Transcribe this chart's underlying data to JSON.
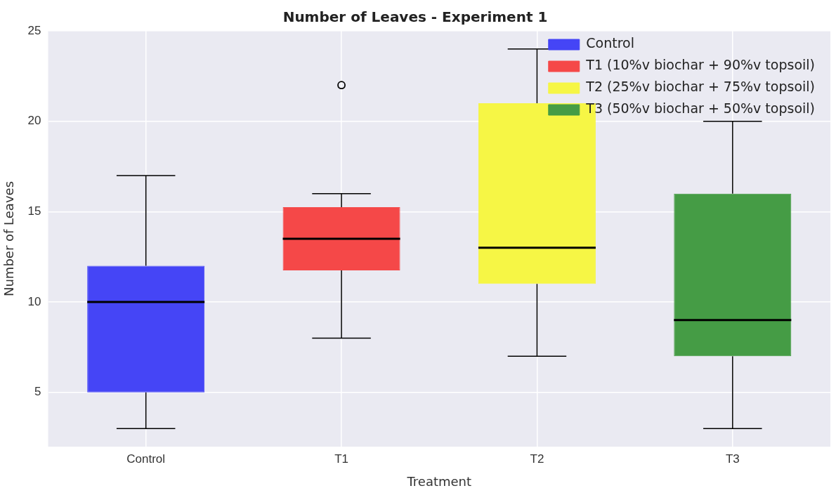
{
  "chart_data": {
    "type": "box",
    "title": "Number of Leaves - Experiment 1",
    "xlabel": "Treatment",
    "ylabel": "Number of Leaves",
    "categories": [
      "Control",
      "T1",
      "T2",
      "T3"
    ],
    "series": [
      {
        "name": "Control",
        "color": "#4545f6",
        "boxes": [
          {
            "low": 3,
            "q1": 5,
            "median": 10,
            "q3": 12,
            "high": 17
          },
          null,
          null,
          null
        ]
      },
      {
        "name": "T1 (10%v biochar + 90%v topsoil)",
        "color": "#f54848",
        "boxes": [
          null,
          {
            "low": 8,
            "q1": 11.75,
            "median": 13.5,
            "q3": 15.25,
            "high": 16,
            "outliers": [
              22
            ]
          },
          null,
          null
        ]
      },
      {
        "name": "T2 (25%v biochar + 75%v topsoil)",
        "color": "#f6f645",
        "boxes": [
          null,
          null,
          {
            "low": 7,
            "q1": 11,
            "median": 13,
            "q3": 21,
            "high": 24
          },
          null
        ]
      },
      {
        "name": "T3 (50%v biochar + 50%v topsoil)",
        "color": "#459c45",
        "boxes": [
          null,
          null,
          null,
          {
            "low": 3,
            "q1": 7,
            "median": 9,
            "q3": 16,
            "high": 20
          }
        ]
      }
    ],
    "ylim": [
      2,
      25
    ],
    "yticks": [
      5,
      10,
      15,
      20,
      25
    ],
    "grid": true,
    "legend": "top right"
  }
}
